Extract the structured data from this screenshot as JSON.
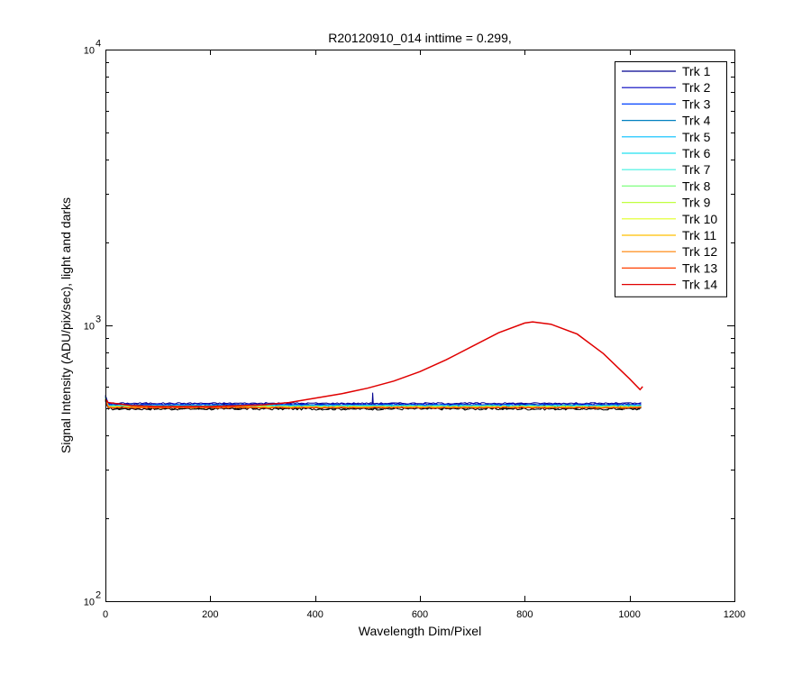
{
  "chart_data": {
    "type": "line",
    "title": "R20120910_014 inttime = 0.299,",
    "xlabel": "Wavelength Dim/Pixel",
    "ylabel": "Signal Intensity (ADU/pix/sec), light and darks",
    "xlim": [
      0,
      1200
    ],
    "ylim": [
      100,
      10000
    ],
    "yscale": "log",
    "grid": false,
    "legend_position": "top-right",
    "x_ticks": [
      0,
      200,
      400,
      600,
      800,
      1000,
      1200
    ],
    "x_tick_labels": [
      "0",
      "200",
      "400",
      "600",
      "800",
      "1000",
      "1200"
    ],
    "y_ticks": [
      {
        "value": 100,
        "base": "10",
        "exp": "2"
      },
      {
        "value": 1000,
        "base": "10",
        "exp": "3"
      },
      {
        "value": 10000,
        "base": "10",
        "exp": "4"
      }
    ],
    "series": [
      {
        "name": "Trk 1",
        "color": "#00008f",
        "flat": 522,
        "spike": {
          "x": 510,
          "y": 570
        }
      },
      {
        "name": "Trk 2",
        "color": "#0000bf",
        "flat": 518
      },
      {
        "name": "Trk 3",
        "color": "#0040ff",
        "flat": 515
      },
      {
        "name": "Trk 4",
        "color": "#0080c0",
        "flat": 513
      },
      {
        "name": "Trk 5",
        "color": "#00bfff",
        "flat": 511
      },
      {
        "name": "Trk 6",
        "color": "#20e0f0",
        "flat": 510
      },
      {
        "name": "Trk 7",
        "color": "#40f0e0",
        "flat": 509
      },
      {
        "name": "Trk 8",
        "color": "#80ff80",
        "flat": 508
      },
      {
        "name": "Trk 9",
        "color": "#c0ff40",
        "flat": 507
      },
      {
        "name": "Trk 10",
        "color": "#e0ff20",
        "flat": 506
      },
      {
        "name": "Trk 11",
        "color": "#ffbf00",
        "flat": 505
      },
      {
        "name": "Trk 12",
        "color": "#ff8000",
        "flat": 504
      },
      {
        "name": "Trk 13",
        "color": "#ff4000",
        "flat": 503
      },
      {
        "name": "Trk 14",
        "color": "#e00000",
        "flat": 505,
        "points": [
          [
            0,
            540
          ],
          [
            5,
            525
          ],
          [
            50,
            512
          ],
          [
            100,
            508
          ],
          [
            200,
            508
          ],
          [
            300,
            515
          ],
          [
            350,
            525
          ],
          [
            400,
            545
          ],
          [
            450,
            565
          ],
          [
            500,
            592
          ],
          [
            550,
            628
          ],
          [
            600,
            680
          ],
          [
            650,
            750
          ],
          [
            700,
            840
          ],
          [
            750,
            940
          ],
          [
            800,
            1020
          ],
          [
            815,
            1030
          ],
          [
            850,
            1010
          ],
          [
            900,
            930
          ],
          [
            950,
            790
          ],
          [
            1000,
            640
          ],
          [
            1020,
            585
          ],
          [
            1025,
            600
          ]
        ]
      }
    ],
    "dark_band": {
      "color": "#000000",
      "low": 498,
      "high": 512
    }
  }
}
